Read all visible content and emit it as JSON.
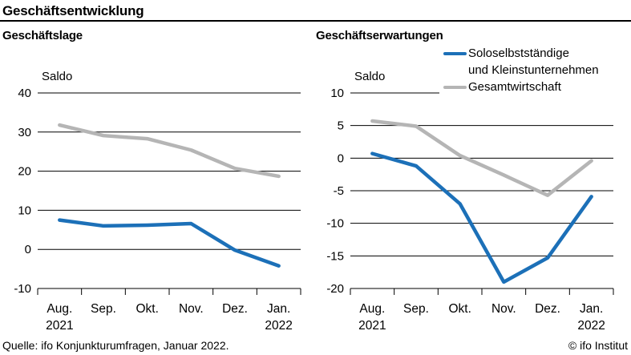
{
  "header": {
    "title": "Geschäftsentwicklung"
  },
  "colors": {
    "blue": "#1C70B8",
    "gray": "#B5B5B5",
    "text": "#000000",
    "background": "#FFFFFF"
  },
  "legend": {
    "items": [
      {
        "label_line1": "Soloselbstständige",
        "label_line2": "und Kleinstunternehmen",
        "color": "blue"
      },
      {
        "label_line1": "Gesamtwirtschaft",
        "color": "gray"
      }
    ]
  },
  "chart_data": [
    {
      "type": "line",
      "title": "Geschäftslage",
      "ylabel": "Saldo",
      "categories": [
        "Aug.",
        "Sep.",
        "Okt.",
        "Nov.",
        "Dez.",
        "Jan."
      ],
      "category_years": [
        "2021",
        "",
        "",
        "",
        "",
        "2022"
      ],
      "ylim": [
        -10,
        40
      ],
      "yticks": [
        40,
        30,
        20,
        10,
        0,
        -10
      ],
      "grid": true,
      "legend_position": "top-right-of-second-chart",
      "series": [
        {
          "name": "Gesamtwirtschaft",
          "color": "gray",
          "values": [
            31.8,
            29.1,
            28.3,
            25.4,
            20.7,
            18.7
          ]
        },
        {
          "name": "Soloselbstständige und Kleinstunternehmen",
          "color": "blue",
          "values": [
            7.5,
            6.0,
            6.2,
            6.6,
            -0.2,
            -4.2
          ]
        }
      ]
    },
    {
      "type": "line",
      "title": "Geschäftserwartungen",
      "ylabel": "Saldo",
      "categories": [
        "Aug.",
        "Sep.",
        "Okt.",
        "Nov.",
        "Dez.",
        "Jan."
      ],
      "category_years": [
        "2021",
        "",
        "",
        "",
        "",
        "2022"
      ],
      "ylim": [
        -20,
        10
      ],
      "yticks": [
        10,
        5,
        0,
        -5,
        -10,
        -15,
        -20
      ],
      "grid": true,
      "gridline_break_for_legend": true,
      "series": [
        {
          "name": "Gesamtwirtschaft",
          "color": "gray",
          "values": [
            5.7,
            4.9,
            0.4,
            -2.6,
            -5.7,
            -0.4
          ]
        },
        {
          "name": "Soloselbstständige und Kleinstunternehmen",
          "color": "blue",
          "values": [
            0.7,
            -1.2,
            -7.0,
            -19.0,
            -15.3,
            -5.9
          ]
        }
      ]
    }
  ],
  "footer": {
    "source": "Quelle: ifo Konjunkturumfragen, Januar 2022.",
    "copyright": "© ifo Institut"
  }
}
